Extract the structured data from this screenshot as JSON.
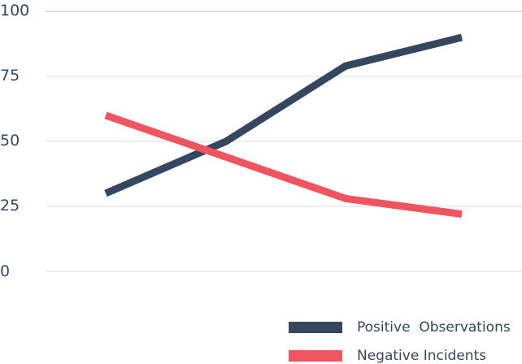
{
  "chart_data": {
    "type": "line",
    "title": "",
    "xlabel": "",
    "ylabel": "",
    "x": [
      1,
      2,
      3,
      4
    ],
    "ylim": [
      0,
      100
    ],
    "yticks": [
      "100",
      "75",
      "50",
      "25",
      "0"
    ],
    "grid": true,
    "legend_position": "bottom-right",
    "series": [
      {
        "name": "Positive  Observations",
        "color": "#34475e",
        "values": [
          30,
          50,
          79,
          90
        ]
      },
      {
        "name": "Negative Incidents",
        "color": "#f0545f",
        "values": [
          60,
          44,
          28,
          22
        ]
      }
    ]
  },
  "legend": {
    "items": [
      {
        "label": "Positive  Observations",
        "color": "#34475e"
      },
      {
        "label": "Negative Incidents",
        "color": "#f0545f"
      }
    ]
  }
}
